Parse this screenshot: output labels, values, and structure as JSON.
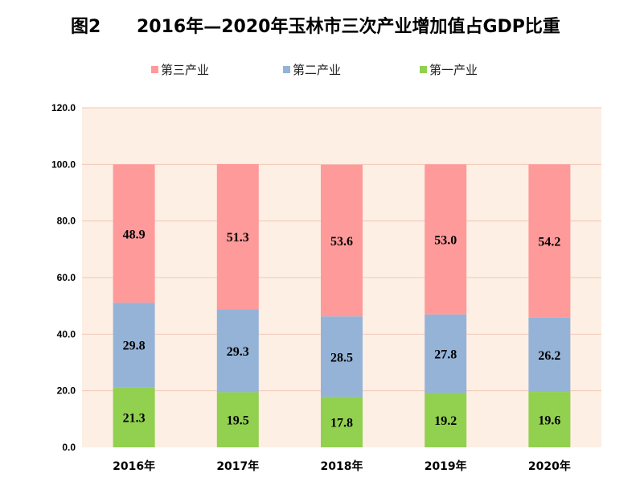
{
  "chart_data": {
    "type": "bar",
    "stacked": true,
    "title_prefix": "图2",
    "title": "2016年—2020年玉林市三次产业增加值占GDP比重",
    "categories": [
      "2016年",
      "2017年",
      "2018年",
      "2019年",
      "2020年"
    ],
    "series": [
      {
        "name": "第一产业",
        "values": [
          21.3,
          19.5,
          17.8,
          19.2,
          19.6
        ],
        "color": "#92d050"
      },
      {
        "name": "第二产业",
        "values": [
          29.8,
          29.3,
          28.5,
          27.8,
          26.2
        ],
        "color": "#95b3d7"
      },
      {
        "name": "第三产业",
        "values": [
          48.9,
          51.3,
          53.6,
          53.0,
          54.2
        ],
        "color": "#ff9a9a"
      }
    ],
    "legend_order": [
      2,
      1,
      0
    ],
    "legend_position": "top",
    "ylim": [
      0,
      120
    ],
    "yticks": [
      "0.0",
      "20.0",
      "40.0",
      "60.0",
      "80.0",
      "100.0",
      "120.0"
    ],
    "grid": true,
    "plot_background": "#fdefe3",
    "grid_color": "#f0c8b8"
  }
}
